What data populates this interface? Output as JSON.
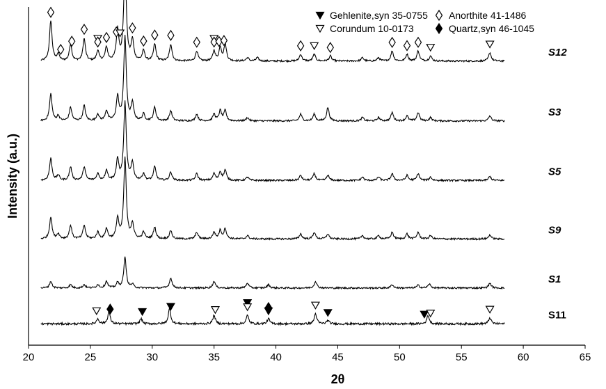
{
  "chart_data": {
    "type": "line",
    "xlabel": "2θ",
    "ylabel": "Intensity (a.u.)",
    "xlim": [
      20,
      65
    ],
    "xticks": [
      20,
      25,
      30,
      35,
      40,
      45,
      50,
      55,
      60,
      65
    ],
    "x_range": [
      21,
      58.5
    ],
    "legend_position": "top-right",
    "legend": [
      {
        "symbol": "triangle-filled",
        "label": "Gehlenite,syn 35-0755"
      },
      {
        "symbol": "triangle-open",
        "label": "Corundum 10-0173"
      },
      {
        "symbol": "diamond-open",
        "label": "Anorthite 41-1486"
      },
      {
        "symbol": "diamond-filled",
        "label": "Quartz,syn 46-1045"
      }
    ],
    "series": [
      {
        "name": "S12",
        "italic": true,
        "baseline": 16,
        "noise": 0.5,
        "peaks": [
          [
            21.8,
            12
          ],
          [
            22.4,
            2
          ],
          [
            23.4,
            5
          ],
          [
            24.5,
            6.5
          ],
          [
            25.6,
            3
          ],
          [
            26.3,
            4
          ],
          [
            27.2,
            9
          ],
          [
            27.8,
            29
          ],
          [
            28.4,
            6
          ],
          [
            29.3,
            3
          ],
          [
            30.2,
            5
          ],
          [
            31.5,
            5
          ],
          [
            33.6,
            3
          ],
          [
            35.0,
            3
          ],
          [
            35.5,
            4
          ],
          [
            35.9,
            5
          ],
          [
            37.7,
            1
          ],
          [
            38.5,
            1
          ],
          [
            42.0,
            2
          ],
          [
            43.1,
            2
          ],
          [
            44.4,
            1.5
          ],
          [
            47.0,
            1
          ],
          [
            48.3,
            1
          ],
          [
            49.4,
            3
          ],
          [
            50.6,
            2
          ],
          [
            51.5,
            3
          ],
          [
            52.5,
            1.5
          ],
          [
            57.3,
            2.5
          ]
        ],
        "markers": [
          {
            "x": 21.8,
            "symbol": "diamond-open",
            "above": 5
          },
          {
            "x": 22.6,
            "symbol": "diamond-open",
            "above": 6
          },
          {
            "x": 23.5,
            "symbol": "diamond-open",
            "above": 7
          },
          {
            "x": 24.5,
            "symbol": "diamond-open",
            "above": 7
          },
          {
            "x": 25.6,
            "symbol": "triangle-open",
            "above": 10
          },
          {
            "x": 25.6,
            "symbol": "diamond-open",
            "above": 5
          },
          {
            "x": 26.3,
            "symbol": "diamond-open",
            "above": 6
          },
          {
            "x": 27.1,
            "symbol": "diamond-open",
            "above": 5
          },
          {
            "x": 27.4,
            "symbol": "triangle-open",
            "above": 10
          },
          {
            "x": 27.8,
            "symbol": "diamond-open",
            "above": 4
          },
          {
            "x": 28.4,
            "symbol": "diamond-open",
            "above": 6
          },
          {
            "x": 29.3,
            "symbol": "diamond-open",
            "above": 6
          },
          {
            "x": 30.2,
            "symbol": "diamond-open",
            "above": 6
          },
          {
            "x": 31.5,
            "symbol": "diamond-open",
            "above": 6
          },
          {
            "x": 33.6,
            "symbol": "diamond-open",
            "above": 6
          },
          {
            "x": 35.0,
            "symbol": "triangle-open",
            "above": 10
          },
          {
            "x": 35.0,
            "symbol": "diamond-open",
            "above": 5
          },
          {
            "x": 35.4,
            "symbol": "diamond-open",
            "above": 8
          },
          {
            "x": 35.8,
            "symbol": "diamond-open",
            "above": 6
          },
          {
            "x": 42.0,
            "symbol": "diamond-open",
            "above": 6
          },
          {
            "x": 43.1,
            "symbol": "triangle-open",
            "above": 6
          },
          {
            "x": 44.4,
            "symbol": "diamond-open",
            "above": 6
          },
          {
            "x": 49.4,
            "symbol": "diamond-open",
            "above": 6
          },
          {
            "x": 50.6,
            "symbol": "diamond-open",
            "above": 6
          },
          {
            "x": 51.5,
            "symbol": "diamond-open",
            "above": 6
          },
          {
            "x": 52.5,
            "symbol": "triangle-open",
            "above": 6
          },
          {
            "x": 57.3,
            "symbol": "triangle-open",
            "above": 6
          }
        ]
      },
      {
        "name": "S3",
        "italic": true,
        "baseline": 33.7,
        "noise": 0.5,
        "peaks": [
          [
            21.8,
            8
          ],
          [
            22.4,
            1.5
          ],
          [
            23.4,
            4
          ],
          [
            24.5,
            4.5
          ],
          [
            25.6,
            2
          ],
          [
            26.3,
            3
          ],
          [
            27.2,
            7
          ],
          [
            27.8,
            25
          ],
          [
            28.4,
            5
          ],
          [
            29.3,
            2
          ],
          [
            30.2,
            4
          ],
          [
            31.5,
            3
          ],
          [
            33.6,
            2
          ],
          [
            35.0,
            2
          ],
          [
            35.5,
            3
          ],
          [
            35.9,
            3
          ],
          [
            37.7,
            1
          ],
          [
            42.0,
            2
          ],
          [
            43.1,
            2
          ],
          [
            44.2,
            4
          ],
          [
            47.0,
            1
          ],
          [
            48.3,
            1
          ],
          [
            49.4,
            2.5
          ],
          [
            50.6,
            1.5
          ],
          [
            51.5,
            2.5
          ],
          [
            52.5,
            1
          ],
          [
            57.3,
            1.5
          ]
        ],
        "markers": []
      },
      {
        "name": "S5",
        "italic": true,
        "baseline": 51.3,
        "noise": 0.5,
        "peaks": [
          [
            21.8,
            6.5
          ],
          [
            22.4,
            1.5
          ],
          [
            23.4,
            4
          ],
          [
            24.5,
            4
          ],
          [
            25.6,
            2
          ],
          [
            26.3,
            3
          ],
          [
            27.2,
            6
          ],
          [
            27.8,
            23
          ],
          [
            28.4,
            5
          ],
          [
            29.3,
            2
          ],
          [
            30.2,
            4
          ],
          [
            31.5,
            2.5
          ],
          [
            33.6,
            2
          ],
          [
            35.0,
            2
          ],
          [
            35.5,
            2.5
          ],
          [
            35.9,
            3
          ],
          [
            37.7,
            1
          ],
          [
            42.0,
            1.5
          ],
          [
            43.1,
            2
          ],
          [
            44.2,
            1.5
          ],
          [
            47.0,
            1
          ],
          [
            48.3,
            1
          ],
          [
            49.4,
            2
          ],
          [
            50.6,
            1.5
          ],
          [
            51.5,
            2
          ],
          [
            52.5,
            1
          ],
          [
            57.3,
            1.2
          ]
        ],
        "markers": []
      },
      {
        "name": "S9",
        "italic": true,
        "baseline": 68.6,
        "noise": 0.5,
        "peaks": [
          [
            21.8,
            6.5
          ],
          [
            22.4,
            1.5
          ],
          [
            23.4,
            4
          ],
          [
            24.5,
            4
          ],
          [
            25.6,
            2
          ],
          [
            26.3,
            3
          ],
          [
            27.2,
            6
          ],
          [
            27.8,
            24
          ],
          [
            28.4,
            4.5
          ],
          [
            29.3,
            2
          ],
          [
            30.2,
            3.5
          ],
          [
            31.5,
            2.5
          ],
          [
            33.6,
            2
          ],
          [
            35.0,
            2
          ],
          [
            35.5,
            2.5
          ],
          [
            35.9,
            3
          ],
          [
            37.7,
            1
          ],
          [
            42.0,
            1.5
          ],
          [
            43.1,
            2
          ],
          [
            44.2,
            1.5
          ],
          [
            47.0,
            1
          ],
          [
            48.3,
            1
          ],
          [
            49.4,
            2
          ],
          [
            50.6,
            1.5
          ],
          [
            51.5,
            2
          ],
          [
            52.5,
            1
          ],
          [
            57.3,
            1.2
          ]
        ],
        "markers": []
      },
      {
        "name": "S1",
        "italic": true,
        "baseline": 83.1,
        "noise": 0.5,
        "peaks": [
          [
            21.8,
            2
          ],
          [
            23.4,
            1
          ],
          [
            24.5,
            1
          ],
          [
            25.6,
            1
          ],
          [
            26.3,
            2
          ],
          [
            27.2,
            1.5
          ],
          [
            27.8,
            9
          ],
          [
            28.4,
            1
          ],
          [
            31.5,
            3
          ],
          [
            35.0,
            2
          ],
          [
            37.7,
            1.5
          ],
          [
            39.4,
            1
          ],
          [
            43.2,
            2
          ],
          [
            49.4,
            1
          ],
          [
            51.5,
            0.8
          ],
          [
            52.4,
            1.2
          ],
          [
            57.3,
            1.5
          ]
        ],
        "markers": []
      },
      {
        "name": "S11",
        "italic": false,
        "baseline": 93.7,
        "noise": 0.6,
        "peaks": [
          [
            25.6,
            1.5
          ],
          [
            26.5,
            3.5
          ],
          [
            29.1,
            1.5
          ],
          [
            31.4,
            4.5
          ],
          [
            35.0,
            2.5
          ],
          [
            37.7,
            2.5
          ],
          [
            39.4,
            1.5
          ],
          [
            43.2,
            3
          ],
          [
            44.2,
            1
          ],
          [
            52.3,
            2.5
          ],
          [
            57.3,
            1.8
          ]
        ],
        "markers": [
          {
            "x": 25.5,
            "symbol": "triangle-open",
            "above": 8
          },
          {
            "x": 26.6,
            "symbol": "diamond-filled",
            "above": 5
          },
          {
            "x": 29.2,
            "symbol": "triangle-filled",
            "above": 7
          },
          {
            "x": 31.5,
            "symbol": "triangle-filled",
            "above": 6
          },
          {
            "x": 35.1,
            "symbol": "triangle-open",
            "above": 7
          },
          {
            "x": 37.7,
            "symbol": "triangle-filled",
            "above": 12
          },
          {
            "x": 37.7,
            "symbol": "triangle-open",
            "above": 6
          },
          {
            "x": 39.4,
            "symbol": "diamond-filled",
            "above": 10
          },
          {
            "x": 39.4,
            "symbol": "triangle-filled",
            "above": 5
          },
          {
            "x": 43.2,
            "symbol": "triangle-open",
            "above": 6
          },
          {
            "x": 44.2,
            "symbol": "triangle-filled",
            "above": 5
          },
          {
            "x": 52.0,
            "symbol": "triangle-filled",
            "above": 6
          },
          {
            "x": 52.5,
            "symbol": "triangle-open",
            "above": 6
          },
          {
            "x": 57.3,
            "symbol": "triangle-open",
            "above": 6
          }
        ]
      }
    ]
  }
}
